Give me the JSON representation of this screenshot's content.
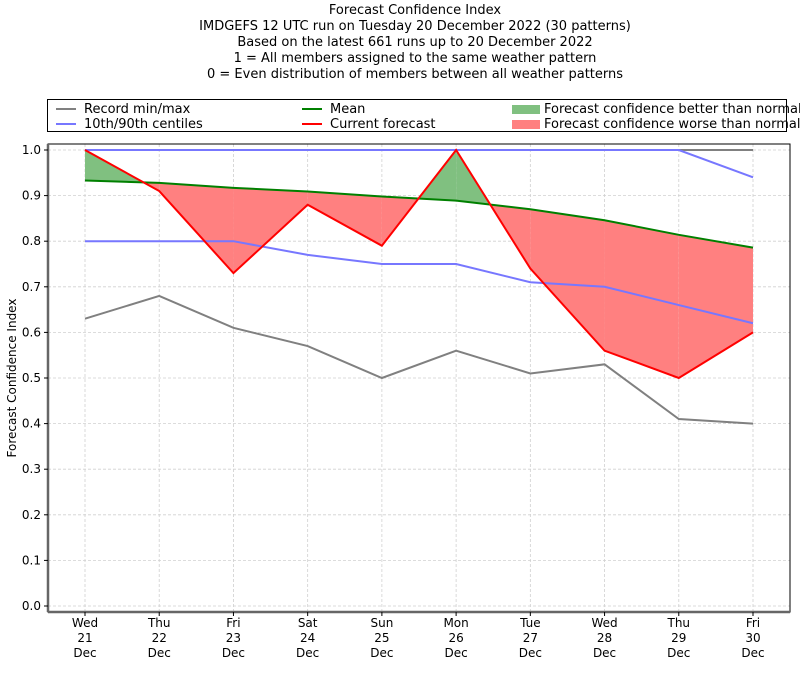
{
  "chart_data": {
    "type": "line",
    "title_lines": [
      "Forecast Confidence Index",
      "IMDGEFS 12 UTC run on Tuesday 20 December 2022 (30 patterns)",
      "Based on the latest 661 runs up to 20 December 2022",
      "1 = All members assigned to the same weather pattern",
      "0 = Even distribution of members between all weather patterns"
    ],
    "xlabel": "",
    "ylabel": "Forecast Confidence Index",
    "ylim": [
      0.0,
      1.0
    ],
    "yticks": [
      "0.0",
      "0.1",
      "0.2",
      "0.3",
      "0.4",
      "0.5",
      "0.6",
      "0.7",
      "0.8",
      "0.9",
      "1.0"
    ],
    "ytick_values": [
      0.0,
      0.1,
      0.2,
      0.3,
      0.4,
      0.5,
      0.6,
      0.7,
      0.8,
      0.9,
      1.0
    ],
    "grid": true,
    "categories": [
      {
        "day": "Wed",
        "date": "21",
        "month": "Dec"
      },
      {
        "day": "Thu",
        "date": "22",
        "month": "Dec"
      },
      {
        "day": "Fri",
        "date": "23",
        "month": "Dec"
      },
      {
        "day": "Sat",
        "date": "24",
        "month": "Dec"
      },
      {
        "day": "Sun",
        "date": "25",
        "month": "Dec"
      },
      {
        "day": "Mon",
        "date": "26",
        "month": "Dec"
      },
      {
        "day": "Tue",
        "date": "27",
        "month": "Dec"
      },
      {
        "day": "Wed",
        "date": "28",
        "month": "Dec"
      },
      {
        "day": "Thu",
        "date": "29",
        "month": "Dec"
      },
      {
        "day": "Fri",
        "date": "30",
        "month": "Dec"
      }
    ],
    "series": [
      {
        "name": "Record max",
        "legend_group": "Record min/max",
        "color": "#808080",
        "values": [
          1.0,
          1.0,
          1.0,
          1.0,
          1.0,
          1.0,
          1.0,
          1.0,
          1.0,
          1.0
        ]
      },
      {
        "name": "Record min",
        "legend_group": "Record min/max",
        "color": "#808080",
        "values": [
          0.63,
          0.68,
          0.61,
          0.57,
          0.5,
          0.56,
          0.51,
          0.53,
          0.41,
          0.4
        ]
      },
      {
        "name": "90th centile",
        "legend_group": "10th/90th centiles",
        "color": "#7777ff",
        "values": [
          1.0,
          1.0,
          1.0,
          1.0,
          1.0,
          1.0,
          1.0,
          1.0,
          1.0,
          0.94
        ]
      },
      {
        "name": "10th centile",
        "legend_group": "10th/90th centiles",
        "color": "#7777ff",
        "values": [
          0.8,
          0.8,
          0.8,
          0.77,
          0.75,
          0.75,
          0.71,
          0.7,
          0.66,
          0.62
        ]
      },
      {
        "name": "Mean",
        "color": "#008000",
        "values": [
          0.933,
          0.928,
          0.917,
          0.909,
          0.898,
          0.889,
          0.87,
          0.846,
          0.814,
          0.786
        ]
      },
      {
        "name": "Current forecast",
        "color": "#ff0000",
        "values": [
          1.0,
          0.91,
          0.73,
          0.88,
          0.79,
          1.0,
          0.74,
          0.56,
          0.5,
          0.6
        ]
      }
    ],
    "fills": [
      {
        "name": "Forecast confidence better than normal",
        "color": "#80c080",
        "condition": "current > mean"
      },
      {
        "name": "Forecast confidence worse than normal",
        "color": "#ff8080",
        "condition": "current < mean"
      }
    ],
    "legend": {
      "placement": "top",
      "entries": [
        {
          "label": "Record min/max",
          "kind": "line",
          "color": "#808080"
        },
        {
          "label": "10th/90th centiles",
          "kind": "line",
          "color": "#7777ff"
        },
        {
          "label": "Mean",
          "kind": "line",
          "color": "#008000"
        },
        {
          "label": "Current forecast",
          "kind": "line",
          "color": "#ff0000"
        },
        {
          "label": "Forecast confidence better than normal",
          "kind": "patch",
          "color": "#80c080"
        },
        {
          "label": "Forecast confidence worse than normal",
          "kind": "patch",
          "color": "#ff8080"
        }
      ]
    }
  }
}
